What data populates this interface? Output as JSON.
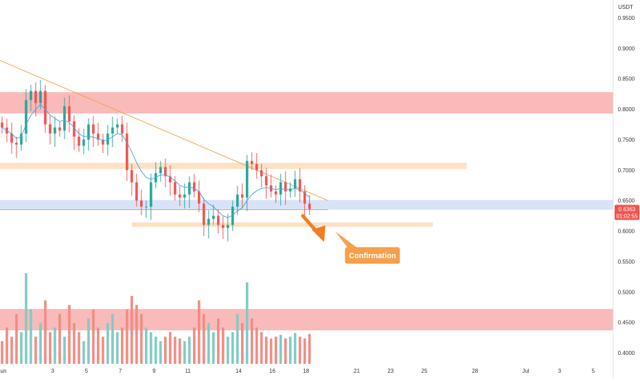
{
  "chart_data": {
    "type": "candlestick",
    "currency_label": "USDT",
    "y_scale": "linear",
    "ylim": [
      0.39,
      0.97
    ],
    "y_ticks": [
      "0.9500",
      "0.9000",
      "0.8500",
      "0.8000",
      "0.7500",
      "0.7000",
      "0.6500",
      "0.6000",
      "0.5500",
      "0.5000",
      "0.4500",
      "0.4000"
    ],
    "x_ticks": [
      {
        "label": "Jun",
        "day": 0
      },
      {
        "label": "3",
        "day": 3
      },
      {
        "label": "5",
        "day": 5
      },
      {
        "label": "7",
        "day": 7
      },
      {
        "label": "9",
        "day": 9
      },
      {
        "label": "11",
        "day": 11
      },
      {
        "label": "14",
        "day": 14
      },
      {
        "label": "16",
        "day": 16
      },
      {
        "label": "18",
        "day": 18
      },
      {
        "label": "21",
        "day": 21
      },
      {
        "label": "23",
        "day": 23
      },
      {
        "label": "25",
        "day": 25
      },
      {
        "label": "28",
        "day": 28
      },
      {
        "label": "Jul",
        "day": 31
      },
      {
        "label": "3",
        "day": 33
      },
      {
        "label": "5",
        "day": 35
      }
    ],
    "last_price": "0.6363",
    "countdown": "01:02:55",
    "last_price_value": 0.6363,
    "candle_closes": [
      0.77,
      0.76,
      0.745,
      0.742,
      0.76,
      0.815,
      0.83,
      0.81,
      0.83,
      0.775,
      0.76,
      0.77,
      0.765,
      0.805,
      0.78,
      0.755,
      0.74,
      0.75,
      0.775,
      0.76,
      0.75,
      0.742,
      0.76,
      0.77,
      0.775,
      0.76,
      0.7,
      0.68,
      0.65,
      0.64,
      0.64,
      0.68,
      0.695,
      0.705,
      0.69,
      0.68,
      0.66,
      0.655,
      0.66,
      0.68,
      0.665,
      0.645,
      0.61,
      0.62,
      0.625,
      0.61,
      0.605,
      0.61,
      0.64,
      0.66,
      0.655,
      0.715,
      0.71,
      0.7,
      0.69,
      0.675,
      0.665,
      0.66,
      0.68,
      0.665,
      0.67,
      0.685,
      0.665,
      0.645,
      0.636
    ],
    "ma_values": [
      0.77,
      0.765,
      0.76,
      0.752,
      0.755,
      0.775,
      0.79,
      0.8,
      0.808,
      0.8,
      0.79,
      0.785,
      0.78,
      0.782,
      0.778,
      0.77,
      0.76,
      0.755,
      0.756,
      0.754,
      0.752,
      0.748,
      0.75,
      0.755,
      0.76,
      0.758,
      0.745,
      0.73,
      0.712,
      0.698,
      0.688,
      0.685,
      0.688,
      0.692,
      0.692,
      0.689,
      0.682,
      0.675,
      0.672,
      0.672,
      0.67,
      0.665,
      0.652,
      0.645,
      0.64,
      0.632,
      0.625,
      0.622,
      0.626,
      0.633,
      0.638,
      0.65,
      0.66,
      0.666,
      0.67,
      0.671,
      0.67,
      0.668,
      0.67,
      0.668,
      0.668,
      0.67,
      0.668,
      0.662,
      0.655
    ],
    "volumes": [
      0.25,
      0.4,
      0.3,
      0.55,
      0.35,
      1.0,
      0.6,
      0.3,
      0.45,
      0.7,
      0.35,
      0.4,
      0.55,
      0.3,
      0.65,
      0.45,
      0.35,
      0.25,
      0.5,
      0.6,
      0.4,
      0.3,
      0.45,
      0.55,
      0.35,
      0.4,
      0.6,
      0.75,
      0.65,
      0.55,
      0.4,
      0.35,
      0.3,
      0.25,
      0.3,
      0.35,
      0.3,
      0.28,
      0.25,
      0.3,
      0.4,
      0.7,
      0.55,
      0.45,
      0.35,
      0.5,
      0.4,
      0.3,
      0.35,
      0.55,
      0.45,
      0.9,
      0.5,
      0.4,
      0.35,
      0.3,
      0.28,
      0.3,
      0.32,
      0.28,
      0.3,
      0.34,
      0.3,
      0.28,
      0.33
    ],
    "zones": [
      {
        "type": "resistance",
        "color": "#f7a9a9",
        "y_top": 0.828,
        "y_bottom": 0.793,
        "x_start_day": 0,
        "x_end_day": 36.5
      },
      {
        "type": "resistance-minor",
        "color": "#fcd9b6",
        "y_top": 0.712,
        "y_bottom": 0.702,
        "x_start_day": 0,
        "x_end_day": 27.5
      },
      {
        "type": "support",
        "color": "#cfdcf5",
        "y_top": 0.651,
        "y_bottom": 0.635,
        "x_start_day": 0,
        "x_end_day": 36.5
      },
      {
        "type": "support-minor",
        "color": "#fcd9b6",
        "y_top": 0.614,
        "y_bottom": 0.607,
        "x_start_day": 7.8,
        "x_end_day": 25.5
      },
      {
        "type": "volume-zone",
        "color": "#f7a9a9",
        "y_top": 0.472,
        "y_bottom": 0.437,
        "x_start_day": 0,
        "x_end_day": 36.5
      }
    ],
    "trendline": {
      "color": "#f7a04b",
      "from": {
        "day": 0,
        "price": 0.88
      },
      "to": {
        "day": 19.3,
        "price": 0.65
      }
    },
    "horizontal_line": {
      "color": "#f7a04b",
      "price": 0.635,
      "x_start_day": 0,
      "x_end_day": 19.3
    },
    "arrow": {
      "color": "#f57c20",
      "from": {
        "day": 17.8,
        "price": 0.625
      },
      "to": {
        "day": 18.9,
        "price": 0.582
      }
    },
    "callout": {
      "text": "Confirmation",
      "color": "#f7a04b",
      "day": 20.3,
      "price": 0.561
    }
  },
  "colors": {
    "up": "#26a69a",
    "down": "#ef5350",
    "ma": "#4ba3e3",
    "last_price_bg": "#ef5350",
    "up_volume": "#80cbc4",
    "down_volume": "#f28b82"
  }
}
